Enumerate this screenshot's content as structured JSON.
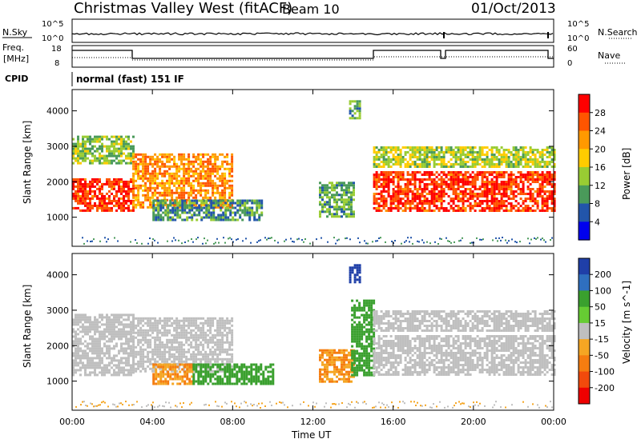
{
  "header": {
    "station": "Christmas Valley West (fitACF)",
    "beam": "Beam 10",
    "date": "01/Oct/2013"
  },
  "panels": {
    "nsky_label": "N.Sky",
    "nsky_ticks": [
      "10^5",
      "10^0"
    ],
    "nsearch_label": "N.Search",
    "freq_label": "Freq.",
    "freq_unit": "[MHz]",
    "freq_ticks": [
      "18",
      "8"
    ],
    "nave_label": "Nave",
    "nave_ticks": [
      "60",
      "0"
    ],
    "cpid_label": "CPID",
    "cpid_text": "normal (fast) 151 IF"
  },
  "chart_data": [
    {
      "type": "heatmap",
      "title": "",
      "xlabel": "Time UT",
      "ylabel": "Slant Range [km]",
      "xlim": [
        "00:00",
        "24:00"
      ],
      "ylim": [
        180,
        4600
      ],
      "x_ticks": [
        "00:00",
        "04:00",
        "08:00",
        "12:00",
        "16:00",
        "20:00",
        "00:00"
      ],
      "y_ticks": [
        1000,
        2000,
        3000,
        4000
      ],
      "colorbar": {
        "label": "Power [dB]",
        "ticks": [
          "28",
          "24",
          "20",
          "16",
          "12",
          "8",
          "4"
        ],
        "range": [
          0,
          30
        ],
        "colors": [
          "#ff0000",
          "#ff5500",
          "#ff9900",
          "#ffcc00",
          "#99cc33",
          "#4a9a5a",
          "#2255aa",
          "#0000ee"
        ]
      },
      "echo_regions": [
        {
          "name": "ionospheric scatter 00-03 UT",
          "t_start": 0.0,
          "t_end": 3.0,
          "range_lo": 1200,
          "range_hi": 2100,
          "power_db": 28
        },
        {
          "name": "ionospheric scatter upper 00-03 UT",
          "t_start": 0.0,
          "t_end": 3.0,
          "range_lo": 2500,
          "range_hi": 3300,
          "power_db": 12
        },
        {
          "name": "descending band 03-08 UT",
          "t_start": 3.0,
          "t_end": 8.0,
          "range_lo": 1300,
          "range_hi": 2800,
          "power_db": 22
        },
        {
          "name": "ground scatter 04-09 UT",
          "t_start": 4.0,
          "t_end": 9.5,
          "range_lo": 950,
          "range_hi": 1500,
          "power_db": 8
        },
        {
          "name": "echo patch 12-14 UT",
          "t_start": 12.3,
          "t_end": 14.0,
          "range_lo": 1000,
          "range_hi": 2000,
          "power_db": 10
        },
        {
          "name": "high range patch 14 UT",
          "t_start": 13.8,
          "t_end": 14.3,
          "range_lo": 3800,
          "range_hi": 4300,
          "power_db": 10
        },
        {
          "name": "ionospheric scatter 15-24 UT",
          "t_start": 15.0,
          "t_end": 24.0,
          "range_lo": 1150,
          "range_hi": 2300,
          "power_db": 28
        },
        {
          "name": "upper scatter 15-24 UT",
          "t_start": 15.0,
          "t_end": 24.0,
          "range_lo": 2400,
          "range_hi": 3000,
          "power_db": 14
        }
      ]
    },
    {
      "type": "heatmap",
      "title": "",
      "xlabel": "Time UT",
      "ylabel": "Slant Range [km]",
      "xlim": [
        "00:00",
        "24:00"
      ],
      "ylim": [
        180,
        4600
      ],
      "x_ticks": [
        "00:00",
        "04:00",
        "08:00",
        "12:00",
        "16:00",
        "20:00",
        "00:00"
      ],
      "y_ticks": [
        1000,
        2000,
        3000,
        4000
      ],
      "colorbar": {
        "label": "Velocity [m s^-1]",
        "ticks": [
          "200",
          "100",
          "50",
          "15",
          "-15",
          "-50",
          "-100",
          "-200"
        ],
        "range": [
          -250,
          250
        ],
        "colors": [
          "#1f3fa8",
          "#2f6fbf",
          "#3aa02e",
          "#66cc33",
          "#bfbfbf",
          "#f5a623",
          "#f57d10",
          "#f24a0c",
          "#ee0000"
        ]
      },
      "echo_regions": [
        {
          "name": "ground scatter 00-03 UT",
          "t_start": 0.0,
          "t_end": 3.0,
          "range_lo": 1200,
          "range_hi": 2900,
          "velocity": 0
        },
        {
          "name": "ground scatter 03-08 UT",
          "t_start": 3.0,
          "t_end": 8.0,
          "range_lo": 1300,
          "range_hi": 2800,
          "velocity": 0
        },
        {
          "name": "negative velocity 04-06 UT",
          "t_start": 4.0,
          "t_end": 6.0,
          "range_lo": 900,
          "range_hi": 1500,
          "velocity": -50
        },
        {
          "name": "positive velocity 06-10 UT",
          "t_start": 6.0,
          "t_end": 10.0,
          "range_lo": 950,
          "range_hi": 1500,
          "velocity": 50
        },
        {
          "name": "negative velocity 12-14 UT",
          "t_start": 12.3,
          "t_end": 14.0,
          "range_lo": 1000,
          "range_hi": 1900,
          "velocity": -50
        },
        {
          "name": "positive velocity 14-15 UT",
          "t_start": 13.9,
          "t_end": 15.0,
          "range_lo": 1200,
          "range_hi": 3300,
          "velocity": 50
        },
        {
          "name": "high range 14 UT",
          "t_start": 13.8,
          "t_end": 14.3,
          "range_lo": 3800,
          "range_hi": 4300,
          "velocity": 200
        },
        {
          "name": "ground scatter 15-24 UT",
          "t_start": 15.0,
          "t_end": 24.0,
          "range_lo": 1150,
          "range_hi": 2300,
          "velocity": 0
        },
        {
          "name": "upper scatter 15-24 UT",
          "t_start": 15.0,
          "t_end": 24.0,
          "range_lo": 2400,
          "range_hi": 3000,
          "velocity": 0
        }
      ]
    }
  ]
}
